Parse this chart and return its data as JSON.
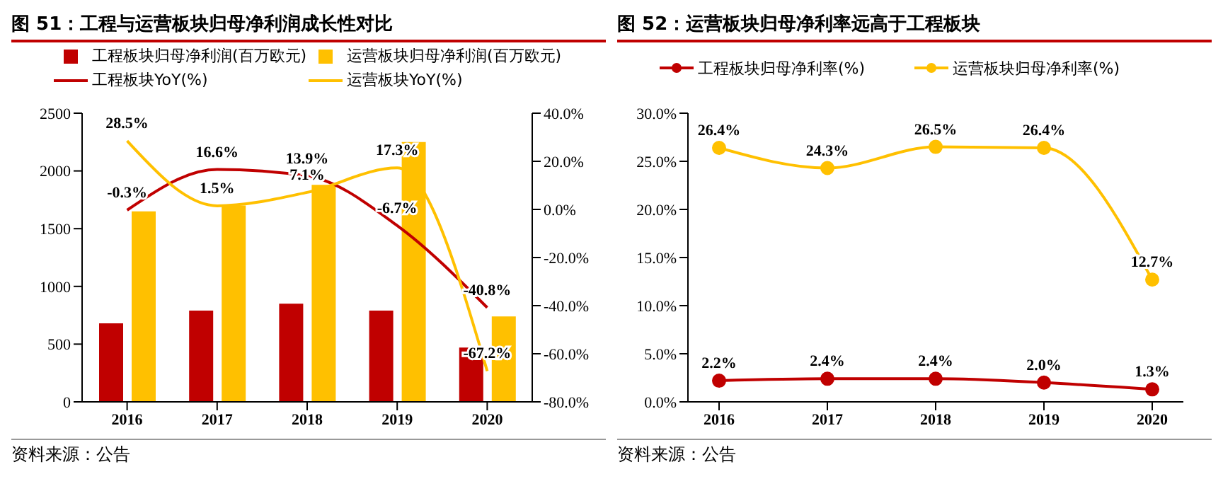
{
  "chart_data": [
    {
      "type": "bar",
      "title": "图 51：工程与运营板块归母净利润成长性对比",
      "categories": [
        "2016",
        "2017",
        "2018",
        "2019",
        "2020"
      ],
      "legend": "top",
      "ylim": [
        0,
        2500
      ],
      "yticks": [
        0,
        500,
        1000,
        1500,
        2000,
        2500
      ],
      "y2lim": [
        -80,
        40
      ],
      "y2ticks": [
        {
          "value": -80,
          "label": "-80.0%"
        },
        {
          "value": -60,
          "label": "-60.0%"
        },
        {
          "value": -40,
          "label": "-40.0%"
        },
        {
          "value": -20,
          "label": "-20.0%"
        },
        {
          "value": 0,
          "label": "0.0%"
        },
        {
          "value": 20,
          "label": "20.0%"
        },
        {
          "value": 40,
          "label": "40.0%"
        }
      ],
      "annotations": [
        "资料来源：公告"
      ],
      "series": [
        {
          "name": "工程板块归母净利润(百万欧元)",
          "color": "#c00000",
          "values": [
            680,
            790,
            850,
            790,
            470
          ]
        },
        {
          "name": "运营板块归母净利润(百万欧元)",
          "color": "#ffc000",
          "values": [
            1650,
            1700,
            1880,
            2250,
            740
          ]
        },
        {
          "name": "工程板块YoY(%)",
          "type": "line",
          "axis": "y2",
          "color": "#c00000",
          "values": [
            -0.3,
            16.6,
            13.9,
            -6.7,
            -40.8
          ],
          "value_labels": [
            "-0.3%",
            "16.6%",
            "13.9%",
            "-6.7%",
            "-40.8%"
          ]
        },
        {
          "name": "运营板块YoY(%)",
          "type": "line",
          "axis": "y2",
          "color": "#ffc000",
          "values": [
            28.5,
            1.5,
            7.1,
            17.3,
            -67.2
          ],
          "value_labels": [
            "28.5%",
            "1.5%",
            "7.1%",
            "17.3%",
            "-67.2%"
          ]
        }
      ]
    },
    {
      "type": "line",
      "title": "图 52：运营板块归母净利率远高于工程板块",
      "categories": [
        "2016",
        "2017",
        "2018",
        "2019",
        "2020"
      ],
      "legend": "top",
      "marker": "circle",
      "ylim": [
        0,
        30
      ],
      "yticks": [
        {
          "value": 0,
          "label": "0.0%"
        },
        {
          "value": 5,
          "label": "5.0%"
        },
        {
          "value": 10,
          "label": "10.0%"
        },
        {
          "value": 15,
          "label": "15.0%"
        },
        {
          "value": 20,
          "label": "20.0%"
        },
        {
          "value": 25,
          "label": "25.0%"
        },
        {
          "value": 30,
          "label": "30.0%"
        }
      ],
      "annotations": [
        "资料来源：公告"
      ],
      "series": [
        {
          "name": "工程板块归母净利率(%)",
          "color": "#c00000",
          "values": [
            2.2,
            2.4,
            2.4,
            2.0,
            1.3
          ],
          "value_labels": [
            "2.2%",
            "2.4%",
            "2.4%",
            "2.0%",
            "1.3%"
          ]
        },
        {
          "name": "运营板块归母净利率(%)",
          "color": "#ffc000",
          "values": [
            26.4,
            24.3,
            26.5,
            26.4,
            12.7
          ],
          "value_labels": [
            "26.4%",
            "24.3%",
            "26.5%",
            "26.4%",
            "12.7%"
          ]
        }
      ]
    }
  ]
}
